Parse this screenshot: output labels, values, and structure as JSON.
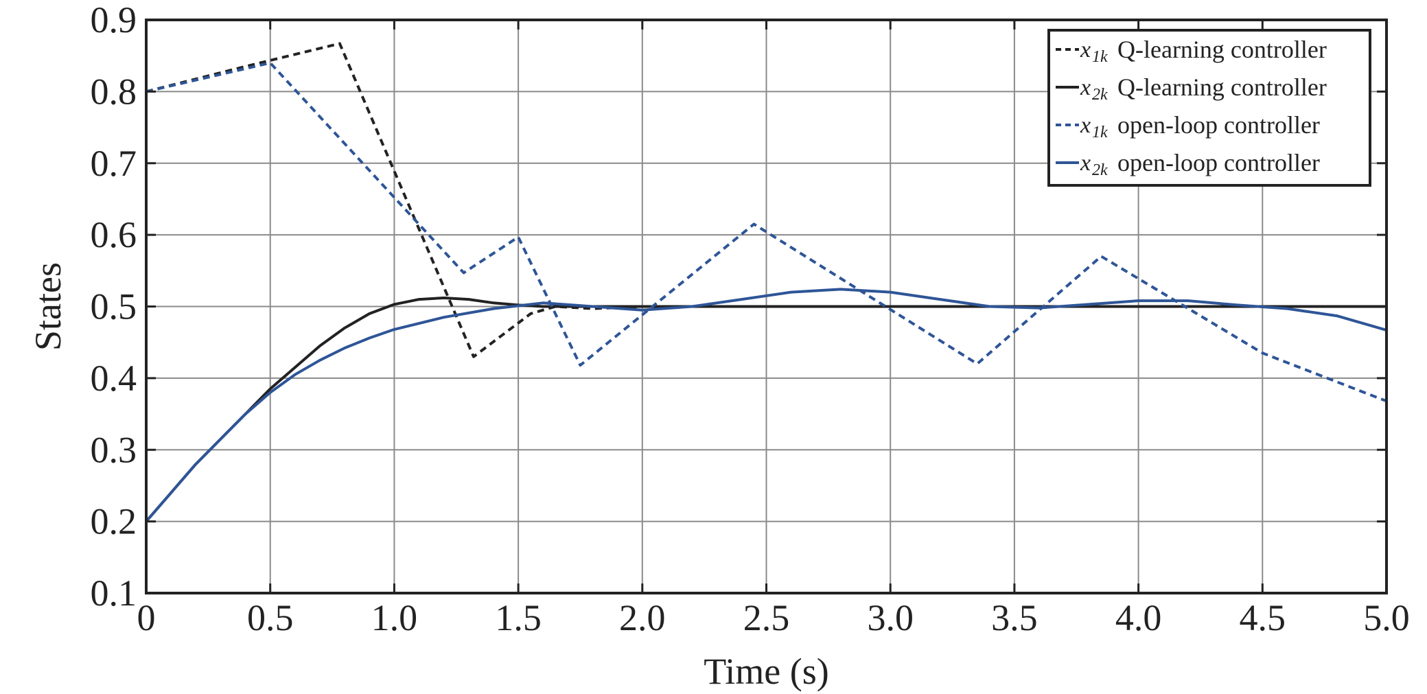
{
  "chart_data": {
    "type": "line",
    "xlabel": "Time (s)",
    "ylabel": "States",
    "xlim": [
      0,
      5
    ],
    "ylim": [
      0.1,
      0.9
    ],
    "grid": true,
    "legend_position": "top-right",
    "x_ticks": [
      "0",
      "0.5",
      "1.0",
      "1.5",
      "2.0",
      "2.5",
      "3.0",
      "3.5",
      "4.0",
      "4.5",
      "5.0"
    ],
    "x_tick_values": [
      0,
      0.5,
      1.0,
      1.5,
      2.0,
      2.5,
      3.0,
      3.5,
      4.0,
      4.5,
      5.0
    ],
    "y_ticks": [
      "0.1",
      "0.2",
      "0.3",
      "0.4",
      "0.5",
      "0.6",
      "0.7",
      "0.8",
      "0.9"
    ],
    "y_tick_values": [
      0.1,
      0.2,
      0.3,
      0.4,
      0.5,
      0.6,
      0.7,
      0.8,
      0.9
    ],
    "series": [
      {
        "symbol": "x",
        "subscript": "1k",
        "name": "Q-learning controller",
        "color": "#222222",
        "dash": true,
        "x": [
          0,
          0.4,
          0.78,
          1.32,
          1.55,
          1.65,
          1.8,
          2.0,
          2.5,
          3.0,
          3.5,
          4.0,
          4.5,
          5.0
        ],
        "y": [
          0.8,
          0.835,
          0.867,
          0.43,
          0.49,
          0.5,
          0.497,
          0.5,
          0.5,
          0.5,
          0.5,
          0.5,
          0.5,
          0.5
        ]
      },
      {
        "symbol": "x",
        "subscript": "2k",
        "name": "Q-learning controller",
        "color": "#222222",
        "dash": false,
        "x": [
          0,
          0.1,
          0.2,
          0.3,
          0.4,
          0.5,
          0.6,
          0.7,
          0.8,
          0.9,
          1.0,
          1.1,
          1.2,
          1.3,
          1.4,
          1.5,
          1.6,
          1.8,
          2.0,
          2.5,
          3.0,
          3.5,
          4.0,
          4.5,
          5.0
        ],
        "y": [
          0.2,
          0.24,
          0.28,
          0.315,
          0.35,
          0.385,
          0.415,
          0.445,
          0.47,
          0.49,
          0.503,
          0.51,
          0.512,
          0.51,
          0.505,
          0.502,
          0.5,
          0.5,
          0.5,
          0.5,
          0.5,
          0.5,
          0.5,
          0.5,
          0.5
        ]
      },
      {
        "symbol": "x",
        "subscript": "1k",
        "name": "open-loop controller",
        "color": "#2e5597",
        "dash": true,
        "x": [
          0,
          0.5,
          1.28,
          1.5,
          1.75,
          2.45,
          3.35,
          3.85,
          4.5,
          5.0
        ],
        "y": [
          0.8,
          0.84,
          0.547,
          0.597,
          0.418,
          0.615,
          0.42,
          0.57,
          0.435,
          0.368
        ]
      },
      {
        "symbol": "x",
        "subscript": "2k",
        "name": "open-loop controller",
        "color": "#2e5597",
        "dash": false,
        "x": [
          0,
          0.1,
          0.2,
          0.3,
          0.4,
          0.5,
          0.6,
          0.7,
          0.8,
          0.9,
          1.0,
          1.2,
          1.4,
          1.6,
          1.8,
          2.0,
          2.2,
          2.4,
          2.6,
          2.8,
          3.0,
          3.2,
          3.4,
          3.6,
          3.8,
          4.0,
          4.2,
          4.4,
          4.6,
          4.8,
          5.0
        ],
        "y": [
          0.2,
          0.24,
          0.28,
          0.315,
          0.35,
          0.38,
          0.405,
          0.425,
          0.442,
          0.456,
          0.468,
          0.485,
          0.497,
          0.505,
          0.5,
          0.495,
          0.5,
          0.51,
          0.52,
          0.524,
          0.52,
          0.51,
          0.5,
          0.498,
          0.503,
          0.508,
          0.508,
          0.502,
          0.497,
          0.487,
          0.467
        ]
      }
    ]
  }
}
